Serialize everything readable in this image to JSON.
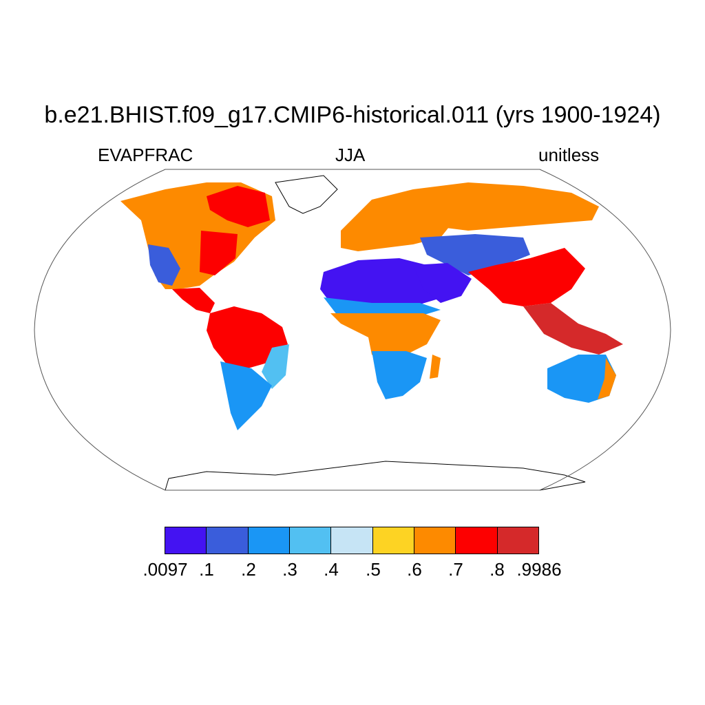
{
  "title": "b.e21.BHIST.f09_g17.CMIP6-historical.011 (yrs 1900-1924)",
  "subtitle": {
    "left": "EVAPFRAC",
    "center": "JJA",
    "right": "unitless"
  },
  "colorbar": {
    "colors": [
      "#4413f2",
      "#3a5ddb",
      "#1a96f5",
      "#52c0f2",
      "#c6e4f5",
      "#fdd323",
      "#fd8a00",
      "#fd0000",
      "#d5292a"
    ],
    "labels": [
      ".0097",
      ".1",
      ".2",
      ".3",
      ".4",
      ".5",
      ".6",
      ".7",
      ".8",
      ".9986"
    ]
  },
  "regions": [
    {
      "name": "north-america",
      "color": "#fd8a00"
    },
    {
      "name": "canada-north",
      "color": "#fd0000"
    },
    {
      "name": "us-southwest",
      "color": "#3a5ddb"
    },
    {
      "name": "us-east",
      "color": "#fd0000"
    },
    {
      "name": "amazon",
      "color": "#fd0000"
    },
    {
      "name": "brazil-east",
      "color": "#52c0f2"
    },
    {
      "name": "south-america-south",
      "color": "#1a96f5"
    },
    {
      "name": "sahara",
      "color": "#4413f2"
    },
    {
      "name": "sahel",
      "color": "#1a96f5"
    },
    {
      "name": "central-africa",
      "color": "#fd8a00"
    },
    {
      "name": "southern-africa",
      "color": "#1a96f5"
    },
    {
      "name": "madagascar",
      "color": "#fd8a00"
    },
    {
      "name": "europe",
      "color": "#fd8a00"
    },
    {
      "name": "russia",
      "color": "#fd8a00"
    },
    {
      "name": "central-asia",
      "color": "#3a5ddb"
    },
    {
      "name": "arabia",
      "color": "#4413f2"
    },
    {
      "name": "india-china",
      "color": "#fd0000"
    },
    {
      "name": "southeast-asia",
      "color": "#d5292a"
    },
    {
      "name": "australia",
      "color": "#1a96f5"
    },
    {
      "name": "greenland",
      "color": "#ffffff"
    },
    {
      "name": "antarctica",
      "color": "#ffffff"
    }
  ]
}
